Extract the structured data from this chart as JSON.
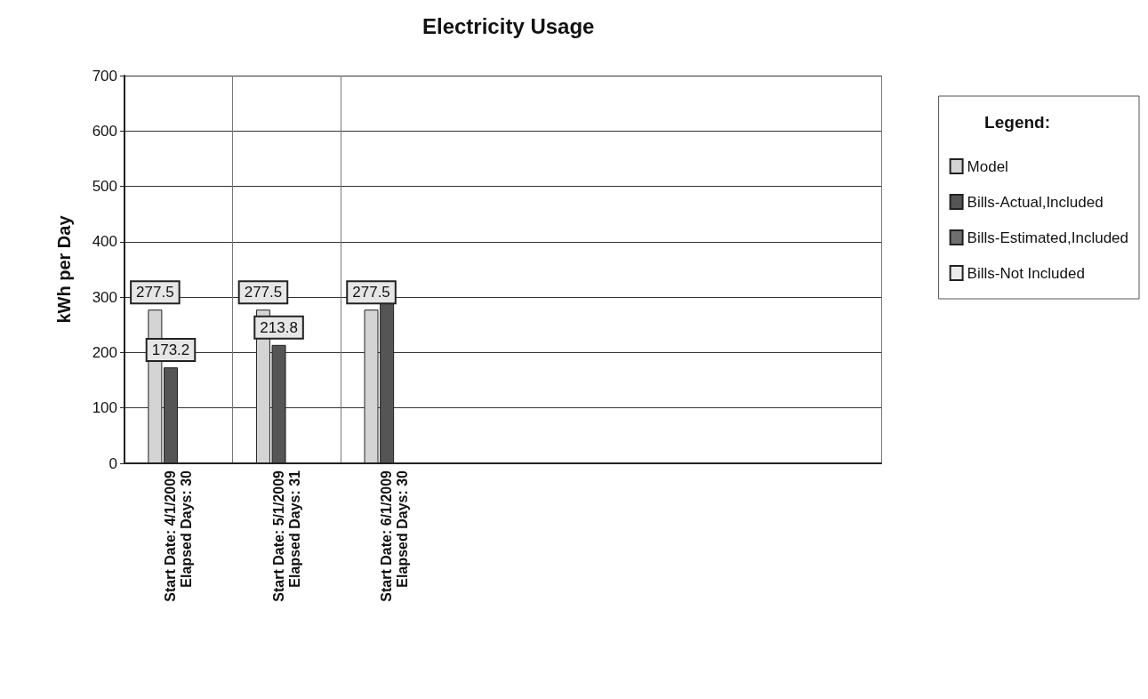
{
  "chart_data": {
    "type": "bar",
    "title": "Electricity Usage",
    "ylabel": "kWh per Day",
    "legend_title": "Legend:",
    "categories": [
      "Start Date: 4/1/2009\nElapsed Days: 30",
      "Start Date: 5/1/2009\nElapsed Days: 31",
      "Start Date: 6/1/2009\nElapsed Days: 30",
      null,
      null,
      null,
      null
    ],
    "series": [
      {
        "name": "Model",
        "color": "#d4d4d4",
        "values": [
          277.5,
          277.5,
          277.5,
          null,
          null,
          null,
          null
        ],
        "value_labels": [
          "277.5",
          "277.5",
          "277.5",
          null,
          null,
          null,
          null
        ]
      },
      {
        "name": "Bills-Actual,Included",
        "color": "#555555",
        "values": [
          173.2,
          213.8,
          293,
          null,
          null,
          null,
          null
        ],
        "value_labels": [
          "173.2",
          "213.8",
          null,
          null,
          null,
          null,
          null
        ]
      },
      {
        "name": "Bills-Estimated,Included",
        "color": "#6e6e6e",
        "values": [
          null,
          null,
          null,
          null,
          null,
          null,
          null
        ]
      },
      {
        "name": "Bills-Not Included",
        "color": "#ebebeb",
        "values": [
          null,
          null,
          null,
          null,
          null,
          null,
          null
        ]
      }
    ],
    "ylim": [
      0,
      700
    ],
    "yticks": [
      0,
      100,
      200,
      300,
      400,
      500,
      600,
      700
    ],
    "grid": true,
    "legend": "right"
  }
}
